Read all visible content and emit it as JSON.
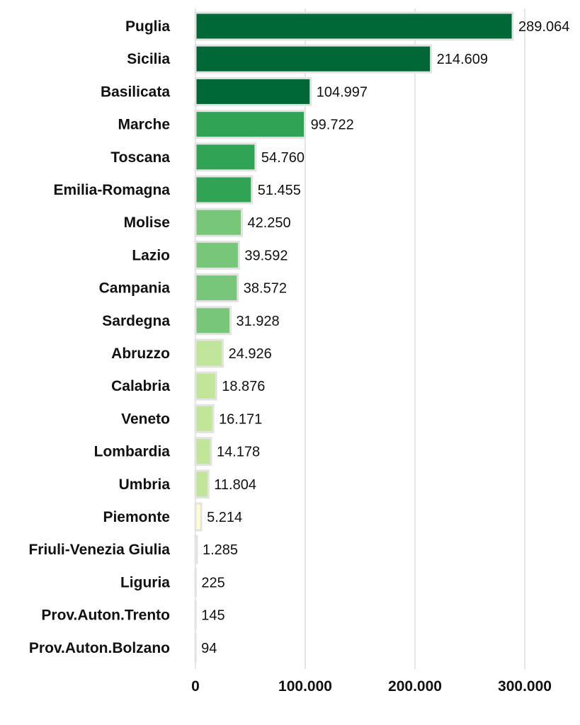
{
  "chart_data": {
    "type": "bar",
    "orientation": "horizontal",
    "title": "",
    "xlabel": "",
    "ylabel": "",
    "categories": [
      "Puglia",
      "Sicilia",
      "Basilicata",
      "Marche",
      "Toscana",
      "Emilia-Romagna",
      "Molise",
      "Lazio",
      "Campania",
      "Sardegna",
      "Abruzzo",
      "Calabria",
      "Veneto",
      "Lombardia",
      "Umbria",
      "Piemonte",
      "Friuli-Venezia Giulia",
      "Liguria",
      "Prov.Auton.Trento",
      "Prov.Auton.Bolzano"
    ],
    "values": [
      289064,
      214609,
      104997,
      99722,
      54760,
      51455,
      42250,
      39592,
      38572,
      31928,
      24926,
      18876,
      16171,
      14178,
      11804,
      5214,
      1285,
      225,
      145,
      94
    ],
    "value_labels": [
      "289.064",
      "214.609",
      "104.997",
      "99.722",
      "54.760",
      "51.455",
      "42.250",
      "39.592",
      "38.572",
      "31.928",
      "24.926",
      "18.876",
      "16.171",
      "14.178",
      "11.804",
      "5.214",
      "1.285",
      "225",
      "145",
      "94"
    ],
    "bar_colors": [
      "#006837",
      "#006837",
      "#006837",
      "#31a354",
      "#31a354",
      "#31a354",
      "#78c679",
      "#78c679",
      "#78c679",
      "#78c679",
      "#c2e699",
      "#c2e699",
      "#c2e699",
      "#c2e699",
      "#c2e699",
      "#ffffcc",
      "#ffffcc",
      "#ffffcc",
      "#ffffcc",
      "#ffffcc"
    ],
    "xlim": [
      0,
      300000
    ],
    "xticks": [
      0,
      100000,
      200000,
      300000
    ],
    "xtick_labels": [
      "0",
      "100.000",
      "200.000",
      "300.000"
    ],
    "grid": "vertical",
    "legend": "none"
  }
}
